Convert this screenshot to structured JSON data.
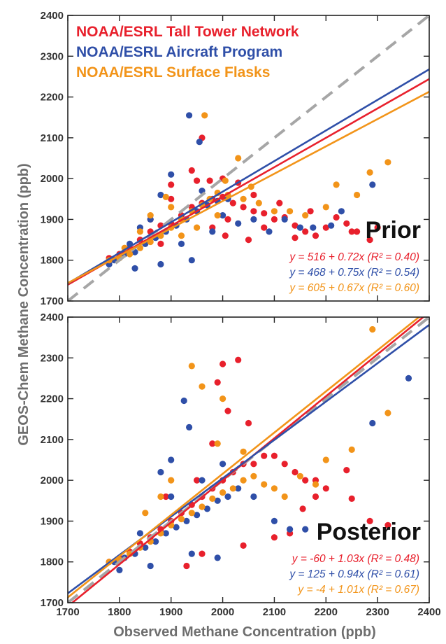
{
  "colors": {
    "tall_tower": "#e8202c",
    "aircraft": "#2f4fa8",
    "surface": "#f29419",
    "one_to_one": "#a6a6a6"
  },
  "chart_data": [
    {
      "type": "scatter",
      "panel_label": "Prior",
      "xlabel": "Observed Methane Concentration (ppb)",
      "ylabel": "GEOS-Chem Methane Concentration (ppb)",
      "xlim": [
        1700,
        2400
      ],
      "ylim": [
        1700,
        2400
      ],
      "x_ticks": [
        "1700",
        "1800",
        "1900",
        "2000",
        "2100",
        "2200",
        "2300",
        "2400"
      ],
      "y_ticks": [
        "1700",
        "1800",
        "1900",
        "2000",
        "2100",
        "2200",
        "2300",
        "2400"
      ],
      "legend": [
        "NOAA/ESRL Tall Tower Network",
        "NOAA/ESRL Aircraft Program",
        "NOAA/ESRL Surface Flasks"
      ],
      "legend_position": "top-left",
      "one_to_one_line": true,
      "series": [
        {
          "name": "NOAA/ESRL Tall Tower Network",
          "intercept": 516,
          "slope": 0.72,
          "equation": "y = 516 + 0.72x",
          "r2": "(R² = 0.40)",
          "points": [
            [
              1780,
              1805
            ],
            [
              1800,
              1815
            ],
            [
              1820,
              1830
            ],
            [
              1840,
              1850
            ],
            [
              1860,
              1870
            ],
            [
              1880,
              1885
            ],
            [
              1900,
              1890
            ],
            [
              1920,
              1910
            ],
            [
              1940,
              1930
            ],
            [
              1960,
              1940
            ],
            [
              1980,
              1950
            ],
            [
              2000,
              1955
            ],
            [
              2020,
              1940
            ],
            [
              2040,
              1930
            ],
            [
              2060,
              1920
            ],
            [
              2080,
              1915
            ],
            [
              2100,
              1900
            ],
            [
              2120,
              1905
            ],
            [
              2140,
              1885
            ],
            [
              2160,
              1870
            ],
            [
              2180,
              1860
            ],
            [
              2200,
              1880
            ],
            [
              2220,
              1905
            ],
            [
              2240,
              1890
            ],
            [
              2250,
              1870
            ],
            [
              2260,
              1870
            ],
            [
              2300,
              1880
            ],
            [
              1950,
              1995
            ],
            [
              1975,
              1995
            ],
            [
              2000,
              2000
            ],
            [
              1900,
              1985
            ],
            [
              1960,
              2100
            ],
            [
              1940,
              2020
            ],
            [
              2030,
              1990
            ],
            [
              2060,
              1960
            ],
            [
              1860,
              1900
            ],
            [
              1900,
              1950
            ],
            [
              2110,
              1940
            ],
            [
              2170,
              1920
            ],
            [
              2080,
              1880
            ],
            [
              2140,
              1855
            ],
            [
              1980,
              1880
            ],
            [
              2010,
              1900
            ],
            [
              1880,
              1840
            ],
            [
              2050,
              1850
            ],
            [
              2005,
              1860
            ],
            [
              2285,
              1850
            ]
          ]
        },
        {
          "name": "NOAA/ESRL Aircraft Program",
          "intercept": 468,
          "slope": 0.75,
          "equation": "y = 468 + 0.75x",
          "r2": "(R² = 0.54)",
          "points": [
            [
              1790,
              1800
            ],
            [
              1810,
              1815
            ],
            [
              1830,
              1820
            ],
            [
              1850,
              1840
            ],
            [
              1870,
              1855
            ],
            [
              1890,
              1870
            ],
            [
              1910,
              1885
            ],
            [
              1930,
              1900
            ],
            [
              1950,
              1920
            ],
            [
              1970,
              1935
            ],
            [
              1990,
              1945
            ],
            [
              2010,
              1950
            ],
            [
              1935,
              2155
            ],
            [
              1955,
              2090
            ],
            [
              1880,
              1960
            ],
            [
              1900,
              2010
            ],
            [
              2000,
              1910
            ],
            [
              2030,
              1890
            ],
            [
              2090,
              1870
            ],
            [
              2120,
              1900
            ],
            [
              2150,
              1880
            ],
            [
              2175,
              1880
            ],
            [
              2210,
              1885
            ],
            [
              2230,
              1920
            ],
            [
              2290,
              1985
            ],
            [
              1830,
              1780
            ],
            [
              1880,
              1790
            ],
            [
              1940,
              1800
            ],
            [
              1860,
              1900
            ],
            [
              1780,
              1790
            ],
            [
              1840,
              1880
            ],
            [
              1920,
              1840
            ],
            [
              1980,
              1870
            ],
            [
              2060,
              1900
            ],
            [
              1820,
              1840
            ],
            [
              1960,
              1970
            ]
          ]
        },
        {
          "name": "NOAA/ESRL Surface Flasks",
          "intercept": 605,
          "slope": 0.67,
          "equation": "y = 605 + 0.67x",
          "r2": "(R² = 0.60)",
          "points": [
            [
              1780,
              1800
            ],
            [
              1800,
              1805
            ],
            [
              1820,
              1815
            ],
            [
              1840,
              1830
            ],
            [
              1860,
              1845
            ],
            [
              1880,
              1860
            ],
            [
              1900,
              1880
            ],
            [
              1920,
              1900
            ],
            [
              1940,
              1920
            ],
            [
              1960,
              1935
            ],
            [
              1975,
              1950
            ],
            [
              1990,
              1965
            ],
            [
              2010,
              1960
            ],
            [
              2040,
              1950
            ],
            [
              2070,
              1940
            ],
            [
              2100,
              1920
            ],
            [
              2130,
              1920
            ],
            [
              2160,
              1910
            ],
            [
              2200,
              1930
            ],
            [
              2220,
              1985
            ],
            [
              2260,
              1960
            ],
            [
              2285,
              2015
            ],
            [
              2320,
              2040
            ],
            [
              1965,
              2155
            ],
            [
              2030,
              2050
            ],
            [
              1990,
              1910
            ],
            [
              1860,
              1910
            ],
            [
              1840,
              1870
            ],
            [
              1900,
              1930
            ],
            [
              1920,
              1860
            ],
            [
              1950,
              1880
            ],
            [
              1810,
              1830
            ],
            [
              2055,
              1980
            ],
            [
              1890,
              1955
            ],
            [
              2005,
              1995
            ]
          ]
        }
      ]
    },
    {
      "type": "scatter",
      "panel_label": "Posterior",
      "xlabel": "Observed Methane Concentration (ppb)",
      "ylabel": "GEOS-Chem Methane Concentration (ppb)",
      "xlim": [
        1700,
        2400
      ],
      "ylim": [
        1700,
        2400
      ],
      "x_ticks": [
        "1700",
        "1800",
        "1900",
        "2000",
        "2100",
        "2200",
        "2300",
        "2400"
      ],
      "y_ticks": [
        "1700",
        "1800",
        "1900",
        "2000",
        "2100",
        "2200",
        "2300",
        "2400"
      ],
      "one_to_one_line": true,
      "series": [
        {
          "name": "NOAA/ESRL Tall Tower Network",
          "intercept": -60,
          "slope": 1.03,
          "equation": "y = -60 + 1.03x",
          "r2": "(R² = 0.48)",
          "points": [
            [
              1780,
              1800
            ],
            [
              1800,
              1810
            ],
            [
              1820,
              1825
            ],
            [
              1840,
              1845
            ],
            [
              1860,
              1860
            ],
            [
              1880,
              1880
            ],
            [
              1900,
              1900
            ],
            [
              1920,
              1920
            ],
            [
              1940,
              1940
            ],
            [
              1960,
              1960
            ],
            [
              1980,
              1980
            ],
            [
              2000,
              2000
            ],
            [
              2020,
              2020
            ],
            [
              2040,
              2040
            ],
            [
              2060,
              2040
            ],
            [
              2080,
              2060
            ],
            [
              2100,
              2060
            ],
            [
              2120,
              2040
            ],
            [
              2140,
              2020
            ],
            [
              2160,
              2000
            ],
            [
              2180,
              2000
            ],
            [
              2200,
              1980
            ],
            [
              2250,
              1955
            ],
            [
              2240,
              2025
            ],
            [
              2030,
              2295
            ],
            [
              2000,
              2285
            ],
            [
              1990,
              2240
            ],
            [
              2050,
              2140
            ],
            [
              2010,
              2170
            ],
            [
              1930,
              1790
            ],
            [
              1960,
              1820
            ],
            [
              2040,
              1840
            ],
            [
              2100,
              1860
            ],
            [
              2130,
              1870
            ],
            [
              2155,
              1930
            ],
            [
              2285,
              1900
            ],
            [
              2320,
              1890
            ],
            [
              2180,
              1960
            ],
            [
              1890,
              1960
            ],
            [
              1950,
              2000
            ],
            [
              1980,
              2090
            ]
          ]
        },
        {
          "name": "NOAA/ESRL Aircraft Program",
          "intercept": 125,
          "slope": 0.94,
          "equation": "y = 125 + 0.94x",
          "r2": "(R² = 0.61)",
          "points": [
            [
              1790,
              1800
            ],
            [
              1810,
              1810
            ],
            [
              1830,
              1820
            ],
            [
              1850,
              1835
            ],
            [
              1870,
              1850
            ],
            [
              1890,
              1870
            ],
            [
              1910,
              1885
            ],
            [
              1930,
              1900
            ],
            [
              1950,
              1915
            ],
            [
              1970,
              1930
            ],
            [
              1990,
              1950
            ],
            [
              2010,
              1960
            ],
            [
              1925,
              2195
            ],
            [
              1935,
              2130
            ],
            [
              1880,
              2020
            ],
            [
              1900,
              2050
            ],
            [
              2000,
              2040
            ],
            [
              2030,
              1980
            ],
            [
              2060,
              1960
            ],
            [
              2100,
              1900
            ],
            [
              2130,
              1880
            ],
            [
              2160,
              1880
            ],
            [
              2290,
              2140
            ],
            [
              2360,
              2250
            ],
            [
              1800,
              1780
            ],
            [
              1860,
              1790
            ],
            [
              1940,
              1820
            ],
            [
              1990,
              1810
            ],
            [
              1840,
              1870
            ],
            [
              1900,
              1960
            ],
            [
              1960,
              2000
            ]
          ]
        },
        {
          "name": "NOAA/ESRL Surface Flasks",
          "intercept": -4,
          "slope": 1.01,
          "equation": "y = -4 + 1.01x",
          "r2": "(R² = 0.67)",
          "points": [
            [
              1780,
              1800
            ],
            [
              1800,
              1805
            ],
            [
              1820,
              1820
            ],
            [
              1840,
              1835
            ],
            [
              1860,
              1850
            ],
            [
              1880,
              1870
            ],
            [
              1900,
              1890
            ],
            [
              1920,
              1905
            ],
            [
              1940,
              1920
            ],
            [
              1960,
              1935
            ],
            [
              1980,
              1955
            ],
            [
              2000,
              1970
            ],
            [
              2020,
              1980
            ],
            [
              2040,
              2000
            ],
            [
              2060,
              2010
            ],
            [
              2080,
              1990
            ],
            [
              2100,
              1980
            ],
            [
              2120,
              1960
            ],
            [
              2150,
              2010
            ],
            [
              2180,
              1990
            ],
            [
              2200,
              2050
            ],
            [
              2250,
              2075
            ],
            [
              2290,
              2370
            ],
            [
              2320,
              2165
            ],
            [
              1940,
              2280
            ],
            [
              1960,
              2230
            ],
            [
              2000,
              2200
            ],
            [
              1900,
              2000
            ],
            [
              1850,
              1920
            ],
            [
              1880,
              1960
            ],
            [
              1990,
              2090
            ],
            [
              2040,
              2070
            ]
          ]
        }
      ]
    }
  ]
}
